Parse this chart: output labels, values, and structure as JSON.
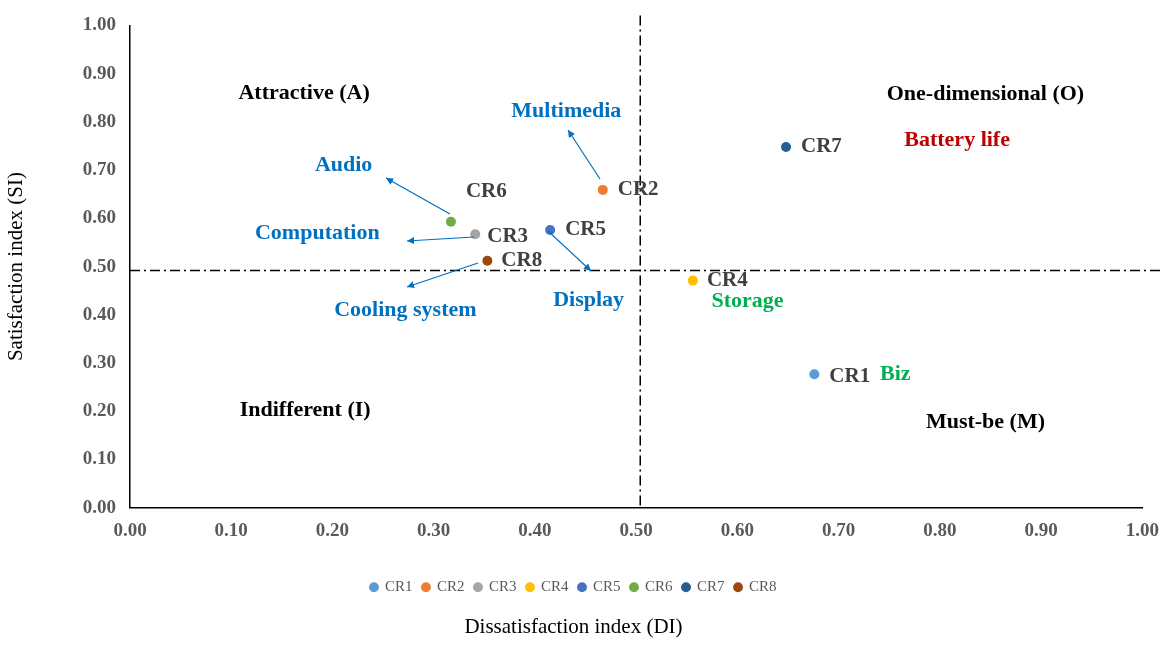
{
  "chart_data": {
    "type": "scatter",
    "xlabel": "Dissatisfaction index (DI)",
    "ylabel": "Satisfaction index (SI)",
    "series": [
      {
        "name": "CR1",
        "color": "#5b9bd5",
        "x": [
          0.676
        ],
        "values": [
          0.277
        ]
      },
      {
        "name": "CR2",
        "color": "#ed7d31",
        "x": [
          0.467
        ],
        "values": [
          0.659
        ]
      },
      {
        "name": "CR3",
        "color": "#a5a5a5",
        "x": [
          0.341
        ],
        "values": [
          0.567
        ]
      },
      {
        "name": "CR4",
        "color": "#ffc000",
        "x": [
          0.556
        ],
        "values": [
          0.471
        ]
      },
      {
        "name": "CR5",
        "color": "#4472c4",
        "x": [
          0.415
        ],
        "values": [
          0.576
        ]
      },
      {
        "name": "CR6",
        "color": "#70ad47",
        "x": [
          0.317
        ],
        "values": [
          0.593
        ]
      },
      {
        "name": "CR7",
        "color": "#255e91",
        "x": [
          0.648
        ],
        "values": [
          0.748
        ]
      },
      {
        "name": "CR8",
        "color": "#9e480e",
        "x": [
          0.353
        ],
        "values": [
          0.512
        ]
      }
    ],
    "xlim": [
      0,
      1
    ],
    "ylim": [
      0,
      1
    ],
    "xticks": [
      {
        "value": 0,
        "label": "0.00"
      },
      {
        "value": 0.1,
        "label": "0.10"
      },
      {
        "value": 0.2,
        "label": "0.20"
      },
      {
        "value": 0.3,
        "label": "0.30"
      },
      {
        "value": 0.4,
        "label": "0.40"
      },
      {
        "value": 0.5,
        "label": "0.50"
      },
      {
        "value": 0.6,
        "label": "0.60"
      },
      {
        "value": 0.7,
        "label": "0.70"
      },
      {
        "value": 0.8,
        "label": "0.80"
      },
      {
        "value": 0.9,
        "label": "0.90"
      },
      {
        "value": 1,
        "label": "1.00"
      }
    ],
    "yticks": [
      {
        "value": 0,
        "label": "0.00"
      },
      {
        "value": 0.1,
        "label": "0.10"
      },
      {
        "value": 0.2,
        "label": "0.20"
      },
      {
        "value": 0.3,
        "label": "0.30"
      },
      {
        "value": 0.4,
        "label": "0.40"
      },
      {
        "value": 0.5,
        "label": "0.50"
      },
      {
        "value": 0.6,
        "label": "0.60"
      },
      {
        "value": 0.7,
        "label": "0.70"
      },
      {
        "value": 0.8,
        "label": "0.80"
      },
      {
        "value": 0.9,
        "label": "0.90"
      },
      {
        "value": 1,
        "label": "1.00"
      }
    ],
    "ref_lines": [
      {
        "axis": "x",
        "value": 0.504,
        "color": "#000000",
        "line_style": "dashed"
      },
      {
        "axis": "y",
        "value": 0.492,
        "color": "#000000",
        "line_style": "dashed"
      }
    ],
    "annotations": [
      "Attractive (A)",
      "One-dimensional (O)",
      "Indifferent (I)",
      "Must-be (M)",
      "Multimedia",
      "Audio",
      "Computation",
      "Cooling system",
      "Display",
      "Battery life",
      "Storage",
      "Biz"
    ],
    "marker": "circle",
    "legend": "bottom",
    "grid": false
  }
}
